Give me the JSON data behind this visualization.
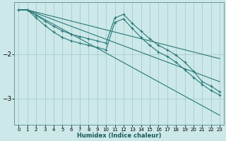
{
  "background_color": "#cce8e8",
  "grid_color": "#aacccc",
  "line_color": "#2a7878",
  "xlabel": "Humidex (Indice chaleur)",
  "xlim": [
    -0.5,
    23.5
  ],
  "ylim": [
    -3.6,
    -0.82
  ],
  "yticks": [
    -3.0,
    -2.0
  ],
  "xticks": [
    0,
    1,
    2,
    3,
    4,
    5,
    6,
    7,
    8,
    9,
    10,
    11,
    12,
    13,
    14,
    15,
    16,
    17,
    18,
    19,
    20,
    21,
    22,
    23
  ],
  "curves": [
    {
      "x": [
        0,
        1,
        2,
        3,
        4,
        5,
        6,
        7,
        8,
        9,
        10,
        11,
        12,
        13,
        14,
        15,
        16,
        17,
        18,
        19,
        20,
        21,
        22,
        23
      ],
      "y": [
        -1.0,
        -1.0,
        -1.12,
        -1.25,
        -1.37,
        -1.47,
        -1.55,
        -1.6,
        -1.65,
        -1.7,
        -1.75,
        -1.18,
        -1.1,
        -1.3,
        -1.48,
        -1.65,
        -1.8,
        -1.9,
        -2.02,
        -2.18,
        -2.38,
        -2.62,
        -2.72,
        -2.85
      ],
      "marker": true
    },
    {
      "x": [
        0,
        1,
        2,
        3,
        4,
        5,
        6,
        7,
        8,
        9,
        10,
        11,
        12,
        13,
        14,
        15,
        16,
        17,
        18,
        19,
        20,
        21,
        22,
        23
      ],
      "y": [
        -1.0,
        -1.0,
        -1.18,
        -1.35,
        -1.5,
        -1.62,
        -1.7,
        -1.75,
        -1.8,
        -1.85,
        -1.9,
        -1.28,
        -1.2,
        -1.42,
        -1.62,
        -1.8,
        -1.95,
        -2.05,
        -2.18,
        -2.35,
        -2.52,
        -2.68,
        -2.82,
        -2.92
      ],
      "marker": true
    },
    {
      "x": [
        0,
        1,
        23
      ],
      "y": [
        -1.0,
        -1.0,
        -2.1
      ],
      "marker": false
    },
    {
      "x": [
        0,
        1,
        23
      ],
      "y": [
        -1.0,
        -1.0,
        -2.62
      ],
      "marker": false
    },
    {
      "x": [
        0,
        1,
        23
      ],
      "y": [
        -1.0,
        -1.0,
        -3.38
      ],
      "marker": false
    }
  ]
}
